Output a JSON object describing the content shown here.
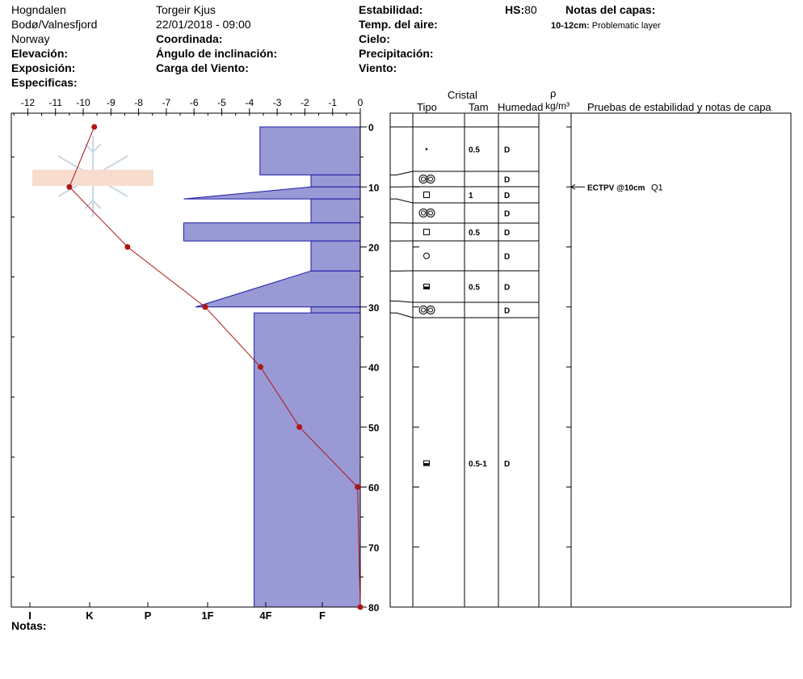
{
  "header": {
    "location": "Hogndalen",
    "region": "Bodø/Valnesfjord",
    "country": "Norway",
    "elevation_label": "Elevación:",
    "exposure_label": "Exposición:",
    "specifics_label": "Especificas:",
    "observer": "Torgeir Kjus",
    "datetime": "22/01/2018 - 09:00",
    "coord_label": "Coordinada:",
    "slope_label": "Ángulo de inclinación:",
    "wind_load_label": "Carga del Viento:",
    "stability_label": "Estabilidad:",
    "air_temp_label": "Temp. del aire:",
    "sky_label": "Cielo:",
    "precip_label": "Precipitación:",
    "wind_label": "Viento:",
    "hs_label": "HS:",
    "hs_value": "80",
    "layer_notes_label": "Notas del capas:",
    "layer_note_range": "10-12cm:",
    "layer_note_text": "Problematic layer"
  },
  "table_headers": {
    "crystal": "Cristal",
    "type": "Tipo",
    "size": "Tam",
    "moisture": "Humedad",
    "rho": "ρ",
    "density_unit": "kg/m³",
    "tests": "Pruebas de estabilidad y notas de capa"
  },
  "footer": {
    "notes_label": "Notas:"
  },
  "colors": {
    "layer_fill": "#9999d6",
    "layer_border": "#1a1aa8",
    "temp_line": "#b01515",
    "temp_dot": "#b01515"
  },
  "chart_data": {
    "type": "snow_profile",
    "temp_axis": {
      "ticks": [
        "-12",
        "-11",
        "-10",
        "-9",
        "-8",
        "-7",
        "-6",
        "-5",
        "-4",
        "-3",
        "-2",
        "-1",
        "0"
      ],
      "range": [
        -12.5,
        0
      ]
    },
    "depth_axis": {
      "ticks": [
        "0",
        "10",
        "20",
        "30",
        "40",
        "50",
        "60",
        "70",
        "80"
      ],
      "range": [
        0,
        80
      ]
    },
    "hardness_axis": {
      "labels": [
        "I",
        "K",
        "P",
        "1F",
        "4F",
        "F"
      ]
    },
    "hs": 80,
    "temperature_profile": [
      {
        "depth": 0,
        "temp": -9.6
      },
      {
        "depth": 10,
        "temp": -10.5
      },
      {
        "depth": 20,
        "temp": -8.4
      },
      {
        "depth": 30,
        "temp": -5.6
      },
      {
        "depth": 40,
        "temp": -3.6
      },
      {
        "depth": 50,
        "temp": -2.2
      },
      {
        "depth": 60,
        "temp": -0.1
      },
      {
        "depth": 80,
        "temp": 0
      }
    ],
    "hardness_layers": [
      {
        "top": 0,
        "bottom": 8,
        "hardness": 3.9
      },
      {
        "top": 8,
        "bottom": 10,
        "hardness": 4.8
      },
      {
        "top": 10,
        "bottom": 12,
        "hardness": 4.8,
        "hardness_bottom": 2.6
      },
      {
        "top": 12,
        "bottom": 16,
        "hardness": 4.8
      },
      {
        "top": 16,
        "bottom": 19,
        "hardness": 2.6
      },
      {
        "top": 19,
        "bottom": 24,
        "hardness": 4.8
      },
      {
        "top": 24,
        "bottom": 30,
        "hardness": 4.8,
        "hardness_bottom": 2.8
      },
      {
        "top": 30,
        "bottom": 31,
        "hardness": 4.8
      },
      {
        "top": 31,
        "bottom": 80,
        "hardness": 3.8
      }
    ],
    "layers": [
      {
        "top": 0,
        "bottom": 8,
        "type": "dot",
        "size": "0.5",
        "moisture": "D"
      },
      {
        "top": 8,
        "bottom": 10,
        "type": "double-ring",
        "size": "",
        "moisture": "D"
      },
      {
        "top": 10,
        "bottom": 12,
        "type": "square",
        "size": "1",
        "moisture": "D"
      },
      {
        "top": 12,
        "bottom": 16,
        "type": "double-ring",
        "size": "",
        "moisture": "D"
      },
      {
        "top": 16,
        "bottom": 19,
        "type": "square",
        "size": "0.5",
        "moisture": "D"
      },
      {
        "top": 19,
        "bottom": 24,
        "type": "circle",
        "size": "",
        "moisture": "D"
      },
      {
        "top": 24,
        "bottom": 29,
        "type": "half-filled-square",
        "size": "0.5",
        "moisture": "D"
      },
      {
        "top": 29,
        "bottom": 31,
        "type": "double-ring",
        "size": "",
        "moisture": "D"
      },
      {
        "top": 31,
        "bottom": 80,
        "type": "half-filled-square",
        "size": "0.5-1",
        "moisture": "D"
      }
    ],
    "stability_tests": [
      {
        "depth": 10,
        "label": "ECTPV @10cm",
        "quality": "Q1"
      }
    ]
  }
}
